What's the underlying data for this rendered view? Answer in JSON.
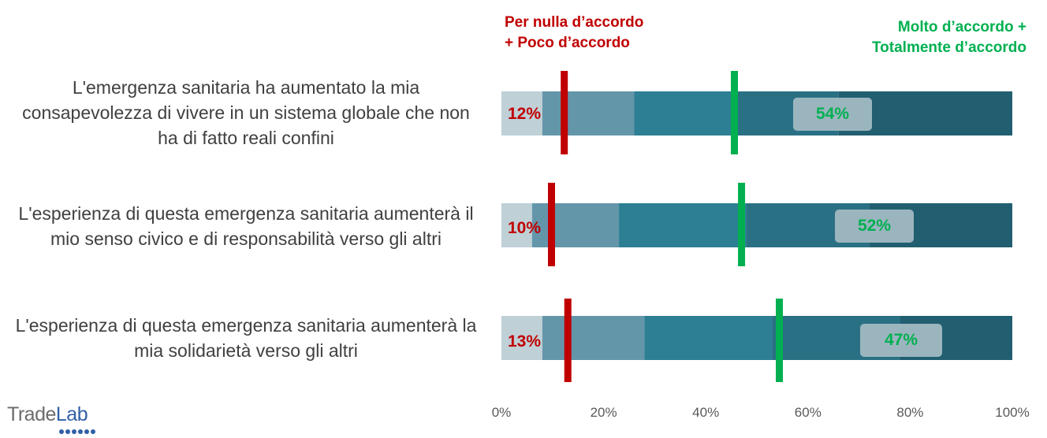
{
  "chart_data": {
    "type": "bar",
    "stacked": true,
    "orientation": "horizontal",
    "categories": [
      "L'emergenza sanitaria ha aumentato la mia consapevolezza di vivere in un sistema globale che non ha di fatto reali confini",
      "L'esperienza di questa emergenza sanitaria aumenterà il mio senso civico e di responsabilità verso gli altri",
      "L'esperienza di questa emergenza sanitaria aumenterà la mia solidarietà verso gli altri"
    ],
    "category_lines": [
      [
        "L'emergenza sanitaria ha aumentato la mia",
        "consapevolezza di vivere in un sistema globale che non",
        "ha di fatto reali confini"
      ],
      [
        "L'esperienza di questa emergenza sanitaria aumenterà il",
        "mio senso civico e di responsabilità verso gli altri"
      ],
      [
        "L'esperienza di questa emergenza sanitaria aumenterà la",
        "mia solidarietà verso gli altri"
      ]
    ],
    "segments": [
      [
        8,
        18,
        20,
        20,
        34
      ],
      [
        6,
        17,
        25,
        24,
        28
      ],
      [
        8,
        20,
        25,
        25,
        22
      ]
    ],
    "segment_colors": [
      "#bfd0d7",
      "#6496aa",
      "#2d7f94",
      "#2a7084",
      "#215f70"
    ],
    "disagree_pct": [
      12,
      10,
      13
    ],
    "agree_pct": [
      54,
      52,
      47
    ],
    "disagree_labels": [
      "12%",
      "10%",
      "13%"
    ],
    "agree_labels": [
      "54%",
      "52%",
      "47%"
    ],
    "disagree_marker": [
      12.3,
      9.8,
      13.0
    ],
    "agree_marker": [
      45.6,
      47.0,
      54.4
    ],
    "legend": {
      "disagree": [
        "Per nulla d’accordo",
        "+ Poco d’accordo"
      ],
      "agree": [
        "Molto d’accordo +",
        "Totalmente d’accordo"
      ]
    },
    "colors": {
      "disagree": "#c00000",
      "agree": "#00b050",
      "agree_box": "#9bb5bf",
      "tick_text": "#595959",
      "label_text": "#404040"
    },
    "xlim": [
      0,
      100
    ],
    "xticks": [
      "0%",
      "20%",
      "40%",
      "60%",
      "80%",
      "100%"
    ],
    "xlabel": "",
    "ylabel": "",
    "title": ""
  },
  "brand": {
    "part1": "Trade",
    "part2": "Lab"
  }
}
